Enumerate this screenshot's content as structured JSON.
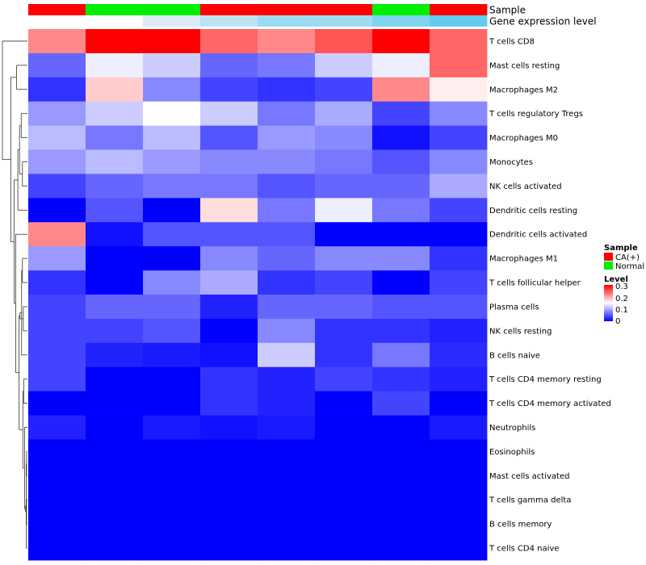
{
  "chart_data": {
    "type": "heatmap",
    "annotations": [
      {
        "label": "Sample",
        "colors": [
          "#FF0000",
          "#00EE00",
          "#00EE00",
          "#FF0000",
          "#FF0000",
          "#FF0000",
          "#00EE00",
          "#FF0000"
        ]
      },
      {
        "label": "Gene expression level",
        "colors": [
          "#FFFFFF",
          "#FFFFFF",
          "#DCE9F6",
          "#BDE3F3",
          "#9DDCF0",
          "#9DDCF0",
          "#7FD3EE",
          "#63CCEE"
        ]
      }
    ],
    "rows": [
      "T cells CD8",
      "Mast cells resting",
      "Macrophages M2",
      "T cells regulatory  Tregs",
      "Macrophages M0",
      "Monocytes",
      "NK cells activated",
      "Dendritic cells resting",
      "Dendritic cells activated",
      "Macrophages M1",
      "T cells follicular helper",
      "Plasma cells",
      "NK cells resting",
      "B cells naive",
      "T cells CD4 memory resting",
      "T cells CD4 memory activated",
      "Neutrophils",
      "Eosinophils",
      "Mast cells activated",
      "T cells gamma delta",
      "B cells memory",
      "T cells CD4 naive"
    ],
    "values": [
      [
        0.22,
        0.3,
        0.3,
        0.24,
        0.22,
        0.25,
        0.3,
        0.24
      ],
      [
        0.06,
        0.14,
        0.12,
        0.06,
        0.07,
        0.12,
        0.14,
        0.24
      ],
      [
        0.03,
        0.18,
        0.08,
        0.04,
        0.03,
        0.04,
        0.22,
        0.16
      ],
      [
        0.09,
        0.12,
        0.15,
        0.12,
        0.07,
        0.1,
        0.04,
        0.08
      ],
      [
        0.11,
        0.07,
        0.11,
        0.05,
        0.09,
        0.08,
        0.01,
        0.04
      ],
      [
        0.09,
        0.11,
        0.09,
        0.08,
        0.08,
        0.07,
        0.05,
        0.08
      ],
      [
        0.04,
        0.06,
        0.07,
        0.07,
        0.05,
        0.06,
        0.06,
        0.1
      ],
      [
        0.0,
        0.05,
        0.0,
        0.17,
        0.07,
        0.14,
        0.07,
        0.04
      ],
      [
        0.22,
        0.01,
        0.05,
        0.05,
        0.05,
        0.0,
        0.0,
        0.0
      ],
      [
        0.09,
        0.0,
        0.0,
        0.08,
        0.06,
        0.08,
        0.08,
        0.03
      ],
      [
        0.03,
        0.0,
        0.08,
        0.1,
        0.03,
        0.04,
        0.0,
        0.04
      ],
      [
        0.04,
        0.06,
        0.06,
        0.02,
        0.06,
        0.06,
        0.05,
        0.05
      ],
      [
        0.04,
        0.04,
        0.05,
        0.0,
        0.08,
        0.03,
        0.03,
        0.02
      ],
      [
        0.04,
        0.02,
        0.015,
        0.01,
        0.12,
        0.03,
        0.07,
        0.025
      ],
      [
        0.04,
        0.0,
        0.0,
        0.03,
        0.02,
        0.04,
        0.03,
        0.02
      ],
      [
        0.0,
        0.0,
        0.0,
        0.03,
        0.02,
        0.0,
        0.04,
        0.0
      ],
      [
        0.02,
        0.0,
        0.015,
        0.01,
        0.015,
        0.0,
        0.0,
        0.015
      ],
      [
        0.0,
        0.0,
        0.0,
        0.0,
        0.0,
        0.0,
        0.0,
        0.0
      ],
      [
        0.0,
        0.0,
        0.0,
        0.0,
        0.0,
        0.0,
        0.0,
        0.0
      ],
      [
        0.0,
        0.0,
        0.0,
        0.0,
        0.0,
        0.0,
        0.0,
        0.0
      ],
      [
        0.0,
        0.0,
        0.0,
        0.0,
        0.0,
        0.0,
        0.0,
        0.0
      ],
      [
        0.0,
        0.0,
        0.0,
        0.0,
        0.0,
        0.0,
        0.0,
        0.0
      ]
    ],
    "color_scale": {
      "min": 0,
      "mid": 0.15,
      "max": 0.3,
      "colors": [
        "#0000FF",
        "#FFFFFF",
        "#FF0000"
      ]
    },
    "dendrogram": {
      "merges": [
        [
          17,
          18,
          0.2
        ],
        [
          19,
          20,
          0.2
        ],
        [
          21,
          22,
          0.3
        ],
        [
          23,
          24,
          0.45
        ],
        [
          14,
          15,
          0.9
        ],
        [
          25,
          16,
          0.7
        ],
        [
          26,
          27,
          1.1
        ],
        [
          9,
          10,
          1.2
        ],
        [
          11,
          12,
          1.0
        ],
        [
          29,
          13,
          1.4
        ],
        [
          30,
          31,
          1.8
        ],
        [
          28,
          32,
          2.0
        ],
        [
          3,
          4,
          1.5
        ],
        [
          5,
          6,
          1.2
        ],
        [
          34,
          35,
          1.9
        ],
        [
          7,
          36,
          2.3
        ],
        [
          33,
          8,
          2.8
        ],
        [
          37,
          38,
          3.2
        ],
        [
          1,
          2,
          2.6
        ],
        [
          39,
          40,
          4.0
        ],
        [
          0,
          41,
          6.0
        ]
      ],
      "max_height": 6.0
    },
    "legend": {
      "sample": {
        "title": "Sample",
        "items": [
          {
            "label": "CA(+)",
            "color": "#FF0000"
          },
          {
            "label": "Normal",
            "color": "#00EE00"
          }
        ]
      },
      "level": {
        "title": "Level",
        "ticks": [
          0.3,
          0.2,
          0.1,
          0
        ],
        "tick_labels": [
          "0.3",
          "0.2",
          "0.1",
          "0"
        ]
      }
    }
  }
}
